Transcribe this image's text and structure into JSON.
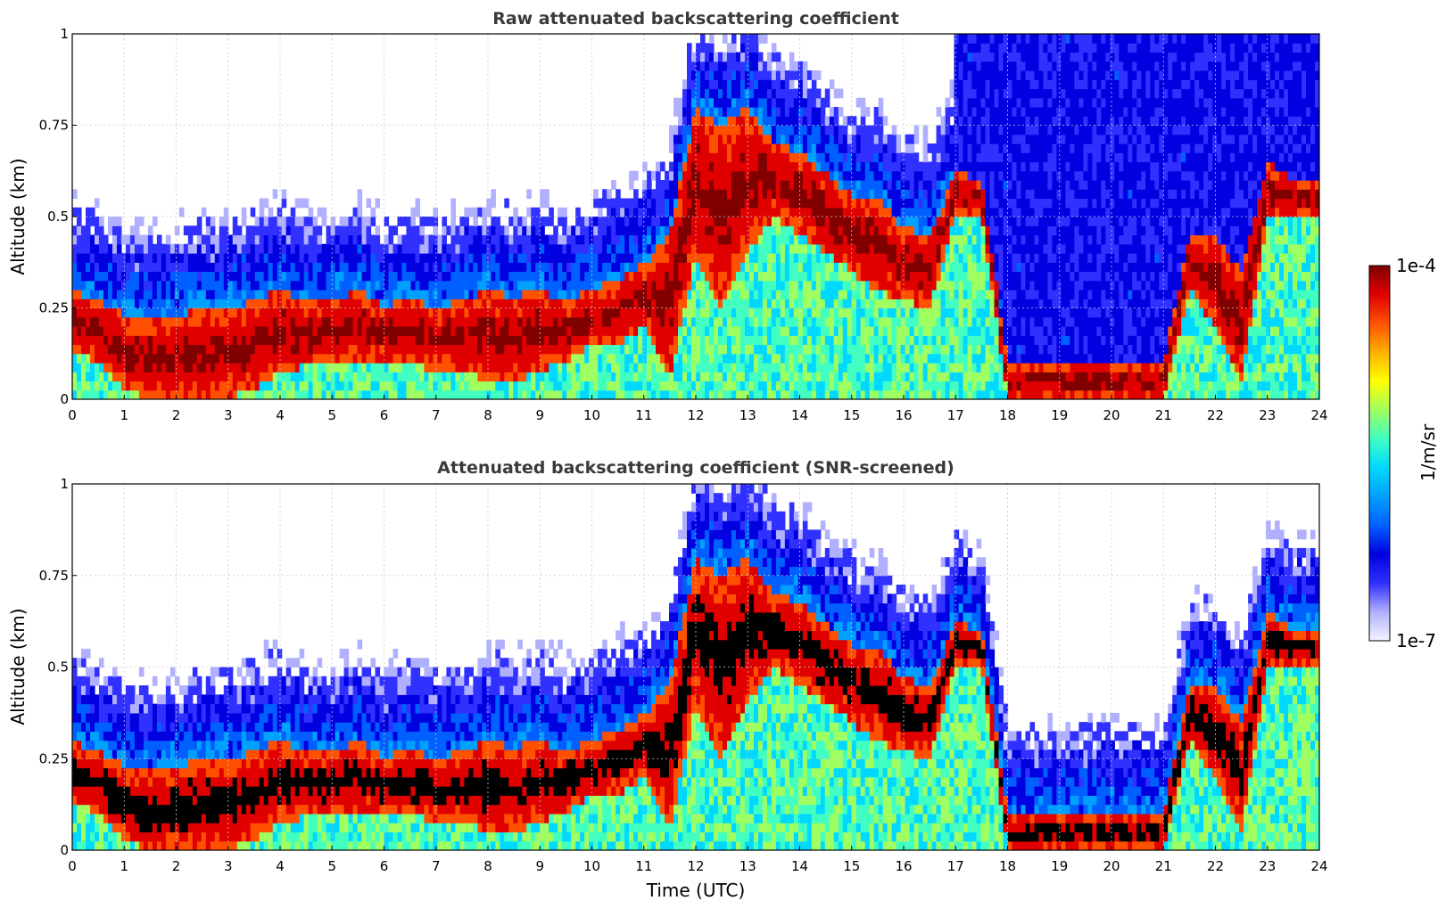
{
  "chart_data": [
    {
      "type": "heatmap",
      "title": "Raw attenuated backscattering coefficient",
      "xlabel": "",
      "ylabel": "Altitude (km)",
      "xlim": [
        0,
        24
      ],
      "ylim": [
        0,
        1
      ],
      "x_ticks": [
        "0",
        "1",
        "2",
        "3",
        "4",
        "5",
        "6",
        "7",
        "8",
        "9",
        "10",
        "11",
        "12",
        "13",
        "14",
        "15",
        "16",
        "17",
        "18",
        "19",
        "20",
        "21",
        "22",
        "23",
        "24"
      ],
      "y_ticks": [
        "0",
        "0.25",
        "0.5",
        "0.75",
        "1"
      ],
      "grid": true,
      "screened": false,
      "layer_top_km": [
        0.3,
        0.27,
        0.23,
        0.22,
        0.23,
        0.25,
        0.25,
        0.27,
        0.3,
        0.27,
        0.27,
        0.3,
        0.25,
        0.28,
        0.25,
        0.27,
        0.3,
        0.28,
        0.3,
        0.27,
        0.3,
        0.33,
        0.37,
        0.45,
        0.8,
        0.75,
        0.8,
        0.7,
        0.68,
        0.62,
        0.56,
        0.55,
        0.47,
        0.45,
        0.62,
        0.6,
        0.1,
        0.1,
        0.1,
        0.1,
        0.1,
        0.1,
        0.1,
        0.45,
        0.45,
        0.35,
        0.65,
        0.6,
        0.6
      ],
      "layer_bottom_km": [
        0.14,
        0.1,
        0.03,
        0.0,
        0.0,
        0.0,
        0.0,
        0.03,
        0.08,
        0.09,
        0.1,
        0.1,
        0.1,
        0.1,
        0.08,
        0.08,
        0.05,
        0.05,
        0.08,
        0.1,
        0.15,
        0.15,
        0.2,
        0.05,
        0.4,
        0.25,
        0.4,
        0.5,
        0.45,
        0.4,
        0.35,
        0.3,
        0.27,
        0.25,
        0.5,
        0.5,
        0.0,
        0.0,
        0.0,
        0.0,
        0.0,
        0.0,
        0.0,
        0.3,
        0.2,
        0.05,
        0.5,
        0.5,
        0.5
      ]
    },
    {
      "type": "heatmap",
      "title": "Attenuated backscattering coefficient (SNR-screened)",
      "xlabel": "Time (UTC)",
      "ylabel": "Altitude (km)",
      "xlim": [
        0,
        24
      ],
      "ylim": [
        0,
        1
      ],
      "x_ticks": [
        "0",
        "1",
        "2",
        "3",
        "4",
        "5",
        "6",
        "7",
        "8",
        "9",
        "10",
        "11",
        "12",
        "13",
        "14",
        "15",
        "16",
        "17",
        "18",
        "19",
        "20",
        "21",
        "22",
        "23",
        "24"
      ],
      "y_ticks": [
        "0",
        "0.25",
        "0.5",
        "0.75",
        "1"
      ],
      "grid": true,
      "screened": true,
      "layer_top_km": [
        0.3,
        0.27,
        0.23,
        0.22,
        0.23,
        0.25,
        0.25,
        0.27,
        0.3,
        0.27,
        0.27,
        0.3,
        0.25,
        0.28,
        0.25,
        0.27,
        0.3,
        0.28,
        0.3,
        0.27,
        0.3,
        0.33,
        0.37,
        0.45,
        0.8,
        0.75,
        0.8,
        0.7,
        0.68,
        0.62,
        0.56,
        0.55,
        0.47,
        0.45,
        0.62,
        0.6,
        0.1,
        0.1,
        0.1,
        0.1,
        0.1,
        0.1,
        0.1,
        0.45,
        0.45,
        0.35,
        0.65,
        0.6,
        0.6
      ],
      "layer_bottom_km": [
        0.14,
        0.1,
        0.03,
        0.0,
        0.0,
        0.0,
        0.0,
        0.03,
        0.08,
        0.09,
        0.1,
        0.1,
        0.1,
        0.1,
        0.08,
        0.08,
        0.05,
        0.05,
        0.08,
        0.1,
        0.15,
        0.15,
        0.2,
        0.05,
        0.4,
        0.25,
        0.4,
        0.5,
        0.45,
        0.4,
        0.35,
        0.3,
        0.27,
        0.25,
        0.5,
        0.5,
        0.0,
        0.0,
        0.0,
        0.0,
        0.0,
        0.0,
        0.0,
        0.3,
        0.2,
        0.05,
        0.5,
        0.5,
        0.5
      ]
    }
  ],
  "colorbar": {
    "max_label": "1e-4",
    "min_label": "1e-7",
    "unit_label": "1/m/sr",
    "colormap": [
      "#f4f4ff",
      "#b0b0ff",
      "#3030ff",
      "#0000e0",
      "#0060ff",
      "#00a0ff",
      "#00d8ff",
      "#40ffc0",
      "#a0ff60",
      "#ffff00",
      "#ffb000",
      "#ff5000",
      "#e00000",
      "#800000"
    ]
  },
  "colors": {
    "saturated_screened": "#000000",
    "background": "#ffffff",
    "grid": "#c8c8c8"
  }
}
